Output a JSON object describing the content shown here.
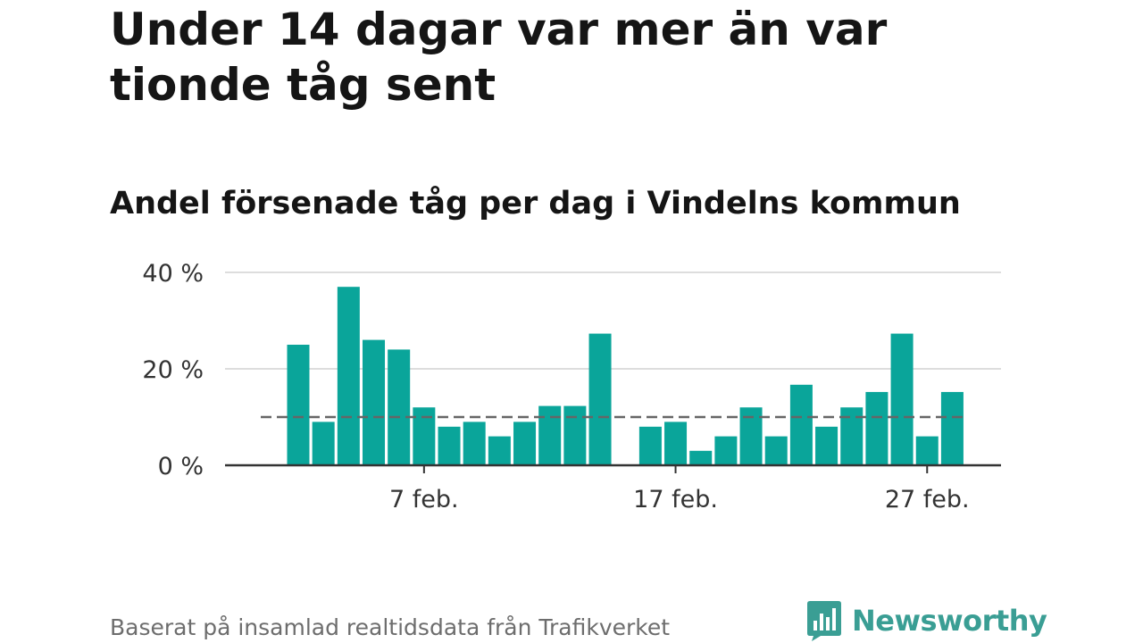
{
  "title": "Under 14 dagar var mer än var tionde tåg sent",
  "subtitle": "Andel försenade tåg per dag i Vindelns kommun",
  "source": "Baserat på insamlad realtidsdata från Trafikverket",
  "brand": {
    "name": "Newsworthy",
    "color": "#3a9e94",
    "logo_icon": "bar-chart-speech-bubble-icon"
  },
  "colors": {
    "bar": "#0aa59a",
    "reference_line": "#666666",
    "grid": "#dddddd",
    "axis": "#333333"
  },
  "chart_data": {
    "type": "bar",
    "x": [
      "2 feb.",
      "3 feb.",
      "4 feb.",
      "5 feb.",
      "6 feb.",
      "7 feb.",
      "8 feb.",
      "9 feb.",
      "10 feb.",
      "11 feb.",
      "12 feb.",
      "13 feb.",
      "14 feb.",
      "15 feb.",
      "16 feb.",
      "17 feb.",
      "18 feb.",
      "19 feb.",
      "20 feb.",
      "21 feb.",
      "22 feb.",
      "23 feb.",
      "24 feb.",
      "25 feb.",
      "26 feb.",
      "27 feb.",
      "28 feb.",
      "1 mars"
    ],
    "values": [
      25,
      9,
      37,
      26,
      24,
      12,
      8,
      9,
      6,
      9,
      12.3,
      12.3,
      27.3,
      null,
      8,
      9,
      3,
      6,
      12,
      6,
      16.7,
      8,
      12,
      15.2,
      27.3,
      6,
      15.2,
      null
    ],
    "reference_line": 10,
    "ylim": [
      0,
      40
    ],
    "y_ticks": [
      0,
      20,
      40
    ],
    "y_tick_labels": [
      "0 %",
      "20 %",
      "40 %"
    ],
    "x_ticks": [
      "7 feb.",
      "17 feb.",
      "27 feb."
    ],
    "grid": true,
    "legend": "none"
  }
}
